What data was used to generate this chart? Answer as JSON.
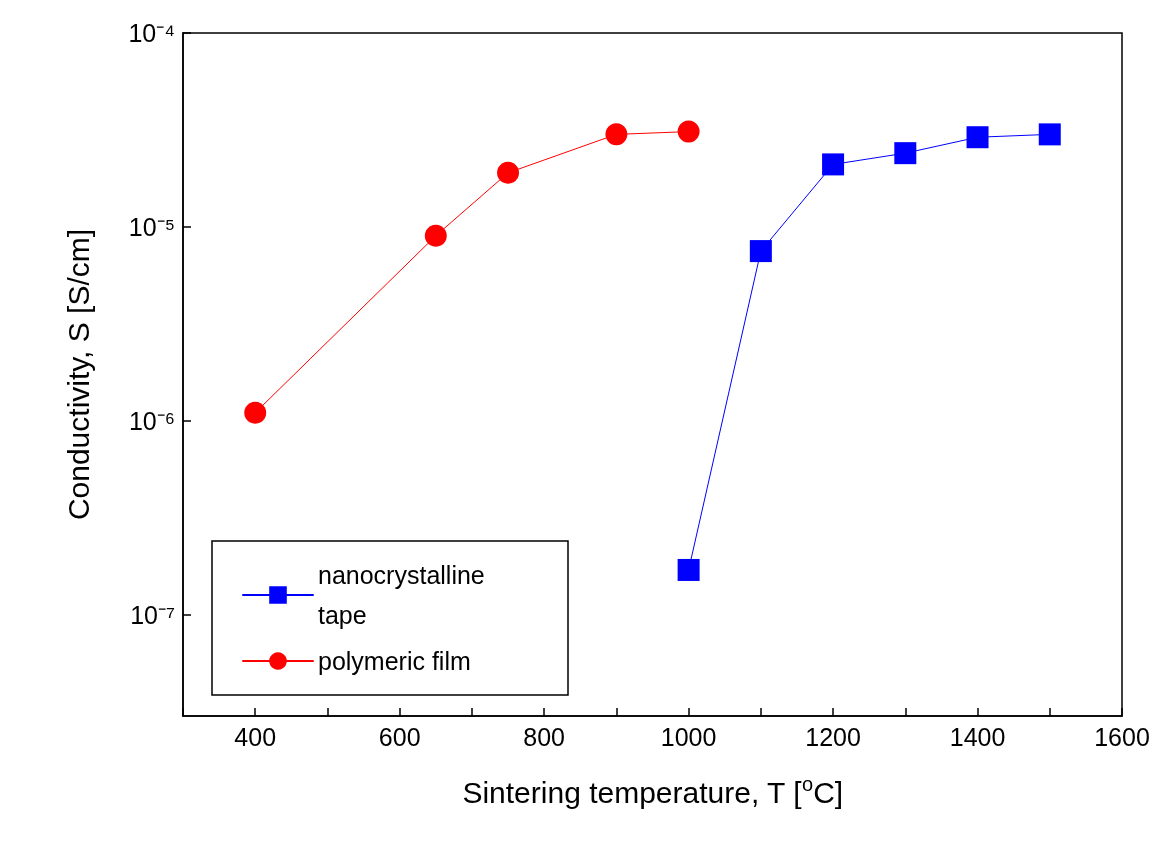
{
  "chart_data": {
    "type": "line",
    "xlabel": "Sintering temperature, T [$^{o}$C]",
    "ylabel": "Conductivity, S [S/cm]",
    "log": "y",
    "xlim": [
      300,
      1600
    ],
    "xticks": [
      {
        "value": 300,
        "label": null
      },
      400,
      {
        "value": 500,
        "label": null
      },
      600,
      {
        "value": 700,
        "label": null
      },
      800,
      {
        "value": 900,
        "label": null
      },
      1000,
      {
        "value": 1100,
        "label": null
      },
      1200,
      {
        "value": 1300,
        "label": null
      },
      1400,
      {
        "value": 1500,
        "label": null
      },
      1600
    ],
    "ylim": [
      3e-08,
      0.0001
    ],
    "yticks": [
      {
        "value": 1e-07,
        "label": "10⁻⁷"
      },
      {
        "value": 1e-06,
        "label": "10⁻⁶"
      },
      {
        "value": 1e-05,
        "label": "10⁻⁵"
      },
      {
        "value": 0.0001,
        "label": "10⁻⁴"
      }
    ],
    "grid": false,
    "legend": "bottom left",
    "line_style": "solid",
    "series": [
      {
        "name": "nanocrystalline tape",
        "color": "#0000ff",
        "marker": "square",
        "x": [
          1000,
          1100,
          1200,
          1300,
          1400,
          1500
        ],
        "values": [
          1.7e-07,
          7.5e-06,
          2.1e-05,
          2.4e-05,
          2.9e-05,
          3e-05
        ]
      },
      {
        "name": "polymeric film",
        "color": "#ff0000",
        "marker": "circle",
        "x": [
          400,
          650,
          750,
          900,
          1000
        ],
        "values": [
          1.1e-06,
          9e-06,
          1.9e-05,
          3e-05,
          3.1e-05
        ]
      }
    ]
  }
}
